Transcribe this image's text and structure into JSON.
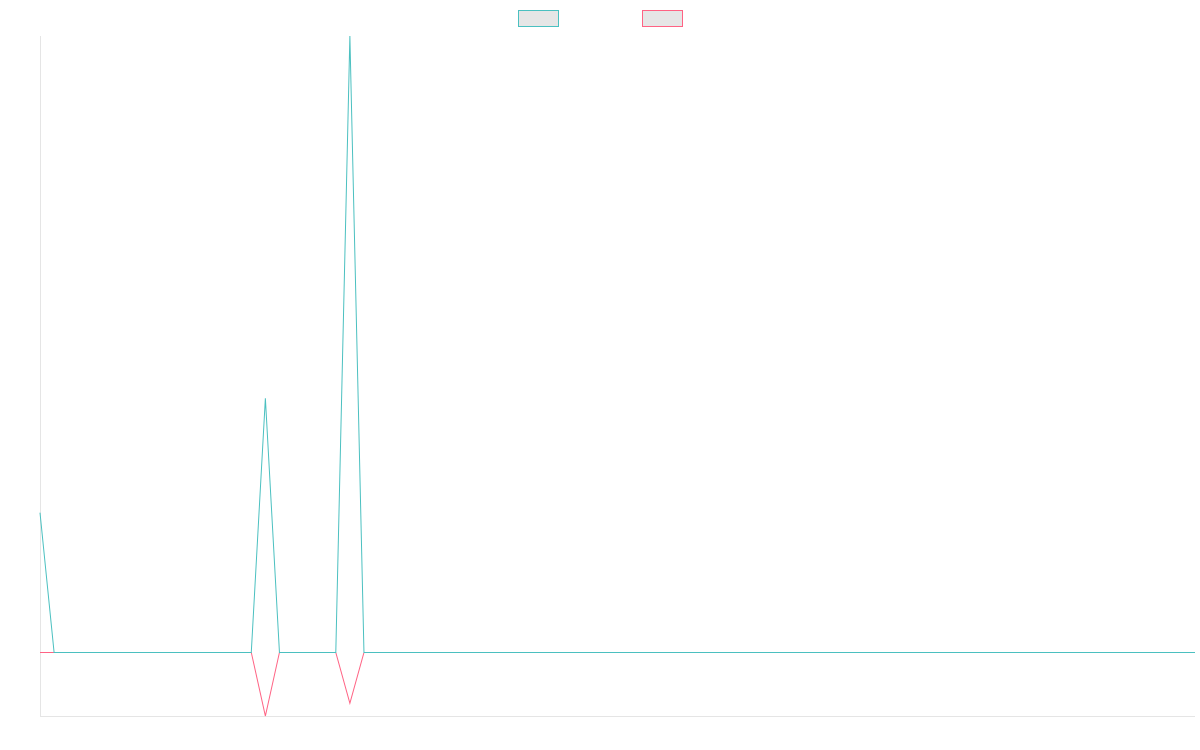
{
  "chart_data": {
    "type": "line",
    "title": "",
    "xlabel": "",
    "ylabel": "",
    "x": [
      0,
      1,
      2,
      3,
      4,
      5,
      6,
      7,
      8,
      9,
      10,
      11,
      12,
      13,
      14,
      15,
      16,
      17,
      18,
      19,
      20,
      21,
      22,
      23,
      24,
      25,
      26,
      27,
      28,
      29,
      30,
      31,
      32,
      33,
      34,
      35,
      36,
      37,
      38,
      39,
      40,
      41,
      42,
      43,
      44,
      45,
      46,
      47,
      48,
      49,
      50,
      51,
      52,
      53,
      54,
      55,
      56,
      57,
      58,
      59,
      60,
      61,
      62,
      63,
      64,
      65,
      66,
      67,
      68,
      69,
      70,
      71,
      72,
      73,
      74,
      75,
      76,
      77,
      78,
      79,
      80,
      81,
      82
    ],
    "ylim": [
      -1,
      9.7
    ],
    "grid": false,
    "legend": "top-center",
    "series": [
      {
        "color": "#4bc0c0",
        "values": [
          2.2,
          0,
          0,
          0,
          0,
          0,
          0,
          0,
          0,
          0,
          0,
          0,
          0,
          0,
          0,
          0,
          4.0,
          0,
          0,
          0,
          0,
          0,
          9.7,
          0,
          0,
          0,
          0,
          0,
          0,
          0,
          0,
          0,
          0,
          0,
          0,
          0,
          0,
          0,
          0,
          0,
          0,
          0,
          0,
          0,
          0,
          0,
          0,
          0,
          0,
          0,
          0,
          0,
          0,
          0,
          0,
          0,
          0,
          0,
          0,
          0,
          0,
          0,
          0,
          0,
          0,
          0,
          0,
          0,
          0,
          0,
          0,
          0,
          0,
          0,
          0,
          0,
          0,
          0,
          0,
          0,
          0,
          0,
          0
        ]
      },
      {
        "color": "#ff6384",
        "values": [
          0,
          0,
          0,
          0,
          0,
          0,
          0,
          0,
          0,
          0,
          0,
          0,
          0,
          0,
          0,
          0,
          -1.0,
          0,
          0,
          0,
          0,
          0,
          -0.8,
          0,
          0,
          0,
          0,
          0,
          0,
          0,
          0,
          0,
          0,
          0,
          0,
          0,
          0,
          0,
          0,
          0,
          0,
          0,
          0,
          0,
          0,
          0,
          0,
          0,
          0,
          0,
          0,
          0,
          0,
          0,
          0,
          0,
          0,
          0,
          0,
          0,
          0,
          0,
          0,
          0,
          0,
          0,
          0,
          0,
          0,
          0,
          0,
          0,
          0,
          0,
          0,
          0,
          0,
          0,
          0,
          0,
          0,
          0,
          0
        ]
      }
    ]
  }
}
